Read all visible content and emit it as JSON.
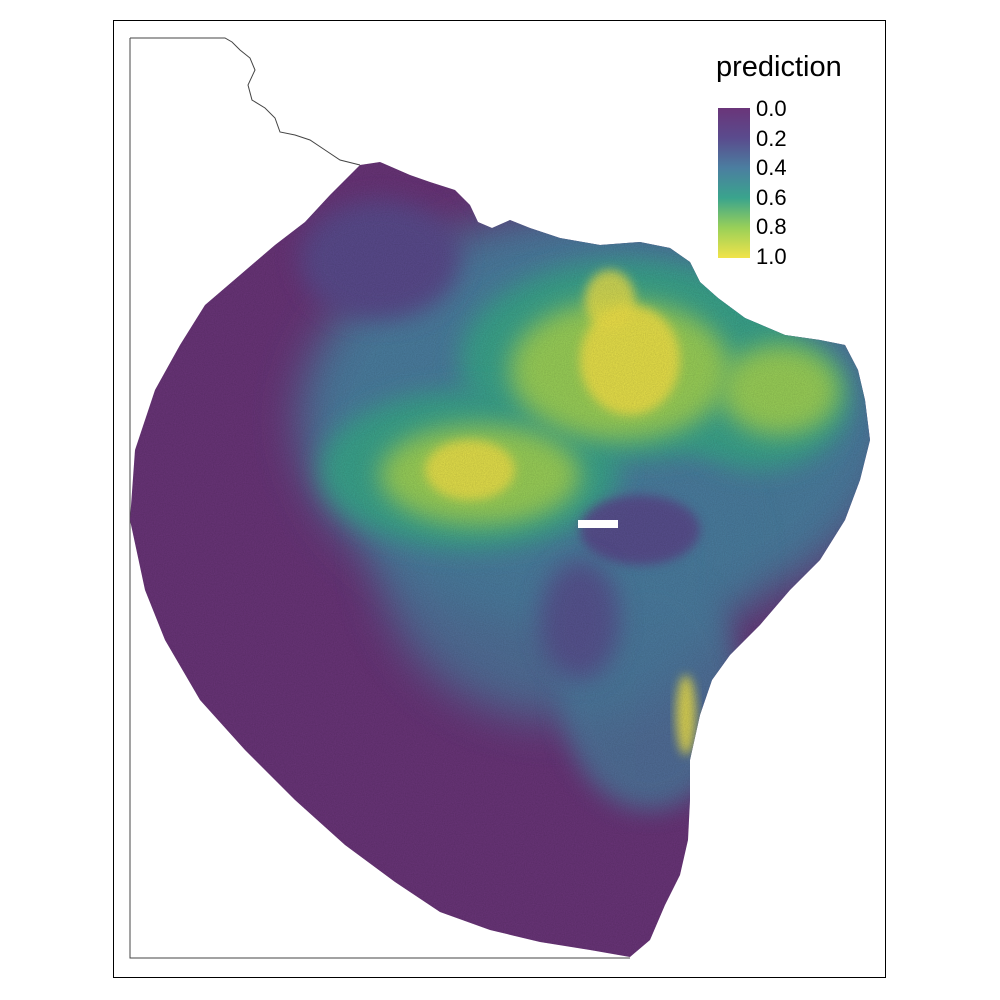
{
  "legend": {
    "title": "prediction",
    "labels": [
      "0.0",
      "0.2",
      "0.4",
      "0.6",
      "0.8",
      "1.0"
    ],
    "stops": [
      0.0,
      0.2,
      0.4,
      0.6,
      0.8,
      1.0
    ]
  },
  "colors": {
    "scale": [
      "#6a3579",
      "#5a4b8d",
      "#4b7ea0",
      "#3aa48d",
      "#9ad058",
      "#f1e34a"
    ],
    "background": "#ffffff",
    "frame": "#000000",
    "boundary": "#444444"
  }
}
